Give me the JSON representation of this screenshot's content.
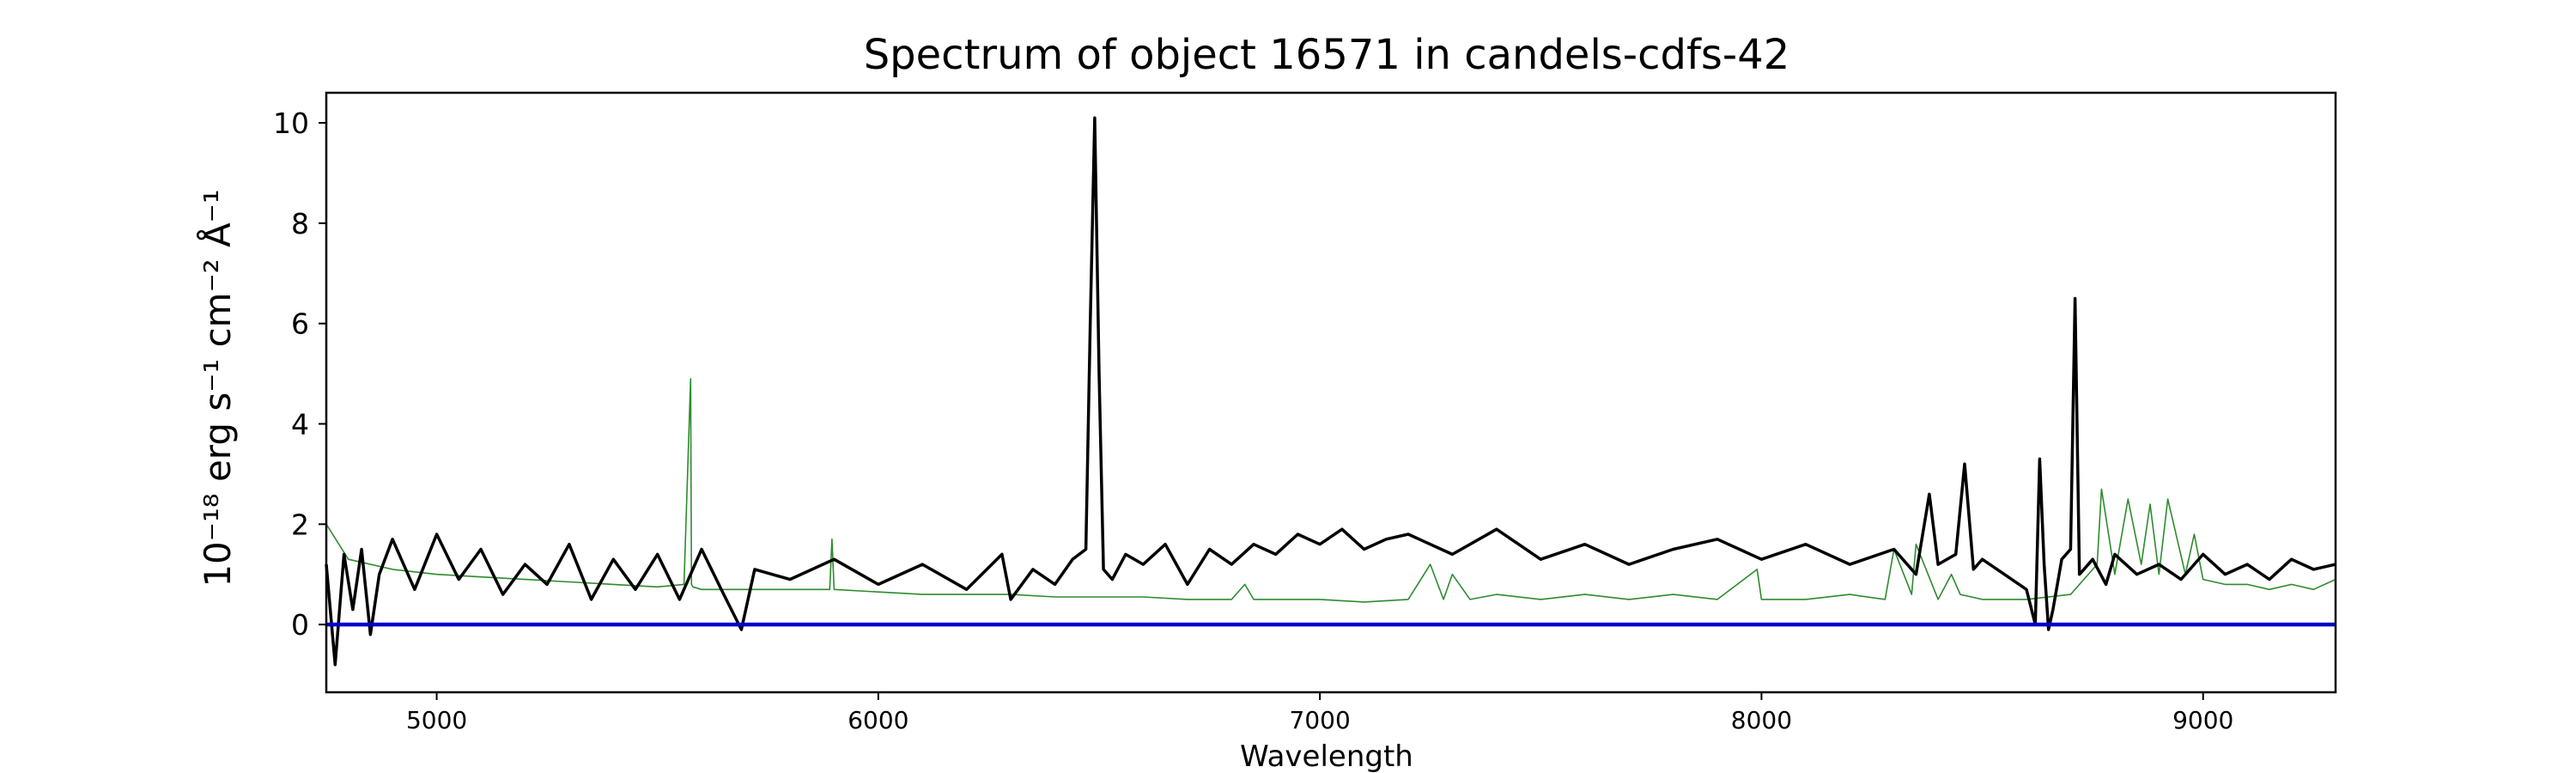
{
  "chart_data": {
    "type": "line",
    "title": "Spectrum of object 16571 in candels-cdfs-42",
    "xlabel": "Wavelength",
    "ylabel": "10⁻¹⁸ erg s⁻¹ cm⁻² Å⁻¹",
    "xlim": [
      4750,
      9300
    ],
    "ylim": [
      -1.35,
      10.6
    ],
    "x_ticks": [
      5000,
      6000,
      7000,
      8000,
      9000
    ],
    "y_ticks": [
      0,
      2,
      4,
      6,
      8,
      10
    ],
    "grid": false,
    "series": [
      {
        "color": "#000000",
        "role": "flux",
        "x": [
          4750,
          4770,
          4790,
          4810,
          4830,
          4850,
          4870,
          4900,
          4950,
          5000,
          5050,
          5100,
          5150,
          5200,
          5250,
          5300,
          5350,
          5400,
          5450,
          5500,
          5550,
          5600,
          5650,
          5690,
          5720,
          5800,
          5900,
          6000,
          6100,
          6200,
          6280,
          6300,
          6350,
          6400,
          6440,
          6470,
          6480,
          6490,
          6500,
          6510,
          6530,
          6560,
          6600,
          6650,
          6700,
          6750,
          6800,
          6850,
          6900,
          6950,
          7000,
          7050,
          7100,
          7150,
          7200,
          7300,
          7400,
          7500,
          7600,
          7700,
          7800,
          7900,
          8000,
          8100,
          8200,
          8300,
          8350,
          8380,
          8400,
          8440,
          8460,
          8480,
          8500,
          8550,
          8600,
          8620,
          8630,
          8640,
          8650,
          8660,
          8680,
          8700,
          8710,
          8720,
          8730,
          8750,
          8780,
          8800,
          8850,
          8900,
          8950,
          9000,
          9050,
          9100,
          9150,
          9200,
          9250,
          9300
        ],
        "y": [
          1.2,
          -0.8,
          1.4,
          0.3,
          1.5,
          -0.2,
          1.0,
          1.7,
          0.7,
          1.8,
          0.9,
          1.5,
          0.6,
          1.2,
          0.8,
          1.6,
          0.5,
          1.3,
          0.7,
          1.4,
          0.5,
          1.5,
          0.6,
          -0.1,
          1.1,
          0.9,
          1.3,
          0.8,
          1.2,
          0.7,
          1.4,
          0.5,
          1.1,
          0.8,
          1.3,
          1.5,
          6.0,
          10.1,
          5.0,
          1.1,
          0.9,
          1.4,
          1.2,
          1.6,
          0.8,
          1.5,
          1.2,
          1.6,
          1.4,
          1.8,
          1.6,
          1.9,
          1.5,
          1.7,
          1.8,
          1.4,
          1.9,
          1.3,
          1.6,
          1.2,
          1.5,
          1.7,
          1.3,
          1.6,
          1.2,
          1.5,
          1.0,
          2.6,
          1.2,
          1.4,
          3.2,
          1.1,
          1.3,
          1.0,
          0.7,
          0.0,
          3.3,
          1.2,
          -0.1,
          0.3,
          1.3,
          1.5,
          6.5,
          1.0,
          1.1,
          1.3,
          0.8,
          1.4,
          1.0,
          1.2,
          0.9,
          1.4,
          1.0,
          1.2,
          0.9,
          1.3,
          1.1,
          1.2
        ]
      },
      {
        "color": "#2e8b2e",
        "role": "sky",
        "x": [
          4750,
          4800,
          4900,
          5000,
          5100,
          5200,
          5300,
          5400,
          5500,
          5560,
          5575,
          5577,
          5580,
          5600,
          5700,
          5800,
          5890,
          5895,
          5900,
          6000,
          6100,
          6200,
          6300,
          6400,
          6500,
          6600,
          6700,
          6800,
          6830,
          6850,
          6900,
          7000,
          7100,
          7200,
          7250,
          7280,
          7300,
          7340,
          7400,
          7500,
          7600,
          7700,
          7800,
          7900,
          7990,
          8000,
          8100,
          8200,
          8280,
          8300,
          8340,
          8350,
          8400,
          8430,
          8450,
          8500,
          8600,
          8700,
          8760,
          8770,
          8800,
          8830,
          8860,
          8880,
          8900,
          8920,
          8960,
          8980,
          9000,
          9050,
          9100,
          9150,
          9200,
          9250,
          9300
        ],
        "y": [
          2.0,
          1.3,
          1.1,
          1.0,
          0.95,
          0.9,
          0.85,
          0.8,
          0.75,
          0.8,
          4.9,
          0.8,
          0.75,
          0.7,
          0.7,
          0.7,
          0.7,
          1.7,
          0.7,
          0.65,
          0.6,
          0.6,
          0.6,
          0.55,
          0.55,
          0.55,
          0.5,
          0.5,
          0.8,
          0.5,
          0.5,
          0.5,
          0.45,
          0.5,
          1.2,
          0.5,
          1.0,
          0.5,
          0.6,
          0.5,
          0.6,
          0.5,
          0.6,
          0.5,
          1.1,
          0.5,
          0.5,
          0.6,
          0.5,
          1.5,
          0.6,
          1.6,
          0.5,
          1.0,
          0.6,
          0.5,
          0.5,
          0.6,
          1.2,
          2.7,
          1.0,
          2.5,
          1.2,
          2.4,
          1.0,
          2.5,
          1.0,
          1.8,
          0.9,
          0.8,
          0.8,
          0.7,
          0.8,
          0.7,
          0.9
        ]
      },
      {
        "color": "#0000cc",
        "role": "zero-line",
        "x": [
          4750,
          9300
        ],
        "y": [
          0,
          0
        ]
      }
    ]
  }
}
